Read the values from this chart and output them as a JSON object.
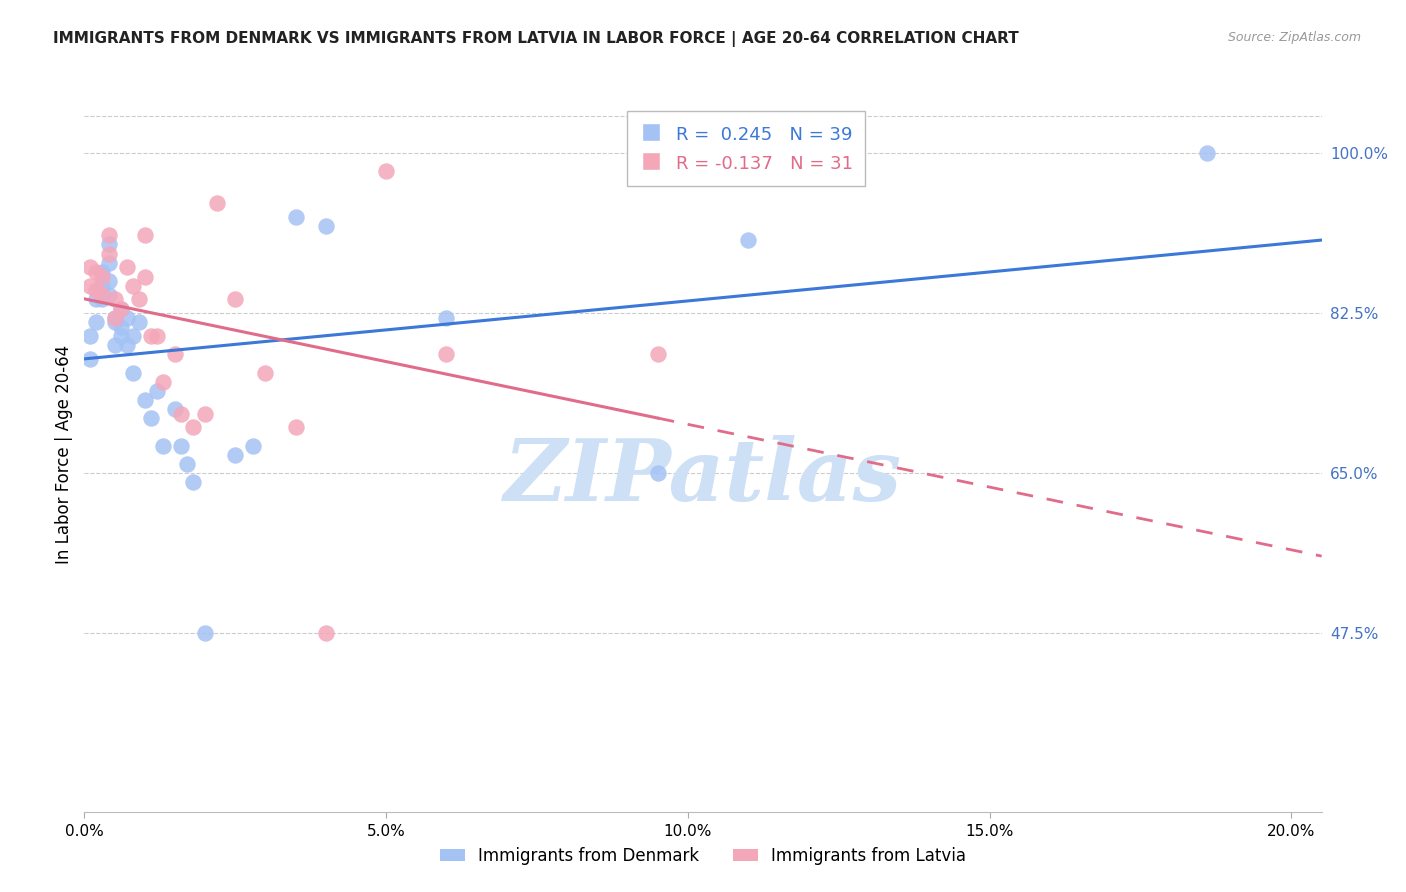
{
  "title": "IMMIGRANTS FROM DENMARK VS IMMIGRANTS FROM LATVIA IN LABOR FORCE | AGE 20-64 CORRELATION CHART",
  "source": "Source: ZipAtlas.com",
  "xlabel_ticks": [
    "0.0%",
    "5.0%",
    "10.0%",
    "15.0%",
    "20.0%"
  ],
  "xlabel_values": [
    0.0,
    0.05,
    0.1,
    0.15,
    0.2
  ],
  "ylabel_ticks": [
    "100.0%",
    "82.5%",
    "65.0%",
    "47.5%"
  ],
  "ylabel_values": [
    1.0,
    0.825,
    0.65,
    0.475
  ],
  "ylabel_label": "In Labor Force | Age 20-64",
  "R_denmark": 0.245,
  "N_denmark": 39,
  "R_latvia": -0.137,
  "N_latvia": 31,
  "denmark_color": "#a4c2f4",
  "latvia_color": "#f4a7b9",
  "denmark_line_color": "#3c78d8",
  "latvia_line_color": "#e06c8a",
  "background_color": "#ffffff",
  "grid_color": "#cccccc",
  "xlim": [
    0.0,
    0.205
  ],
  "ylim": [
    0.28,
    1.06
  ],
  "denmark_x": [
    0.001,
    0.001,
    0.002,
    0.002,
    0.003,
    0.003,
    0.003,
    0.004,
    0.004,
    0.004,
    0.004,
    0.005,
    0.005,
    0.005,
    0.006,
    0.006,
    0.006,
    0.007,
    0.007,
    0.008,
    0.008,
    0.009,
    0.01,
    0.011,
    0.012,
    0.013,
    0.015,
    0.016,
    0.017,
    0.018,
    0.02,
    0.025,
    0.028,
    0.035,
    0.04,
    0.06,
    0.095,
    0.11,
    0.186
  ],
  "denmark_y": [
    0.8,
    0.775,
    0.84,
    0.815,
    0.84,
    0.87,
    0.855,
    0.86,
    0.88,
    0.9,
    0.845,
    0.82,
    0.79,
    0.815,
    0.81,
    0.83,
    0.8,
    0.79,
    0.82,
    0.76,
    0.8,
    0.815,
    0.73,
    0.71,
    0.74,
    0.68,
    0.72,
    0.68,
    0.66,
    0.64,
    0.475,
    0.67,
    0.68,
    0.93,
    0.92,
    0.82,
    0.65,
    0.905,
    1.0
  ],
  "latvia_x": [
    0.001,
    0.001,
    0.002,
    0.002,
    0.003,
    0.003,
    0.004,
    0.004,
    0.005,
    0.005,
    0.006,
    0.007,
    0.008,
    0.009,
    0.01,
    0.01,
    0.011,
    0.012,
    0.013,
    0.015,
    0.016,
    0.018,
    0.02,
    0.022,
    0.025,
    0.03,
    0.035,
    0.04,
    0.05,
    0.06,
    0.095
  ],
  "latvia_y": [
    0.875,
    0.855,
    0.87,
    0.85,
    0.865,
    0.845,
    0.91,
    0.89,
    0.82,
    0.84,
    0.83,
    0.875,
    0.855,
    0.84,
    0.865,
    0.91,
    0.8,
    0.8,
    0.75,
    0.78,
    0.715,
    0.7,
    0.715,
    0.945,
    0.84,
    0.76,
    0.7,
    0.475,
    0.98,
    0.78,
    0.78
  ],
  "watermark": "ZIPatlas",
  "watermark_color": "#cde0f5"
}
